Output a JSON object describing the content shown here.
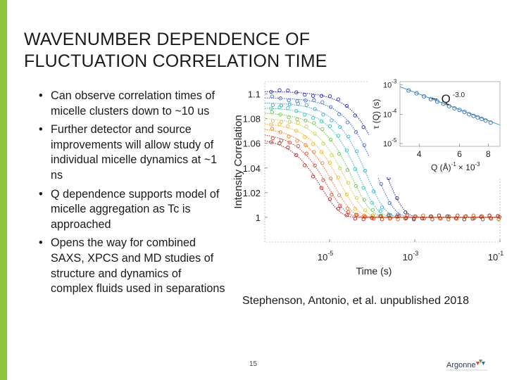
{
  "slide": {
    "title": "WAVENUMBER DEPENDENCE OF\nFLUCTUATION CORRELATION TIME",
    "bullets": [
      "Can observe correlation times of micelle clusters down to ~10 us",
      "Further detector and source improvements will allow study of individual micelle dynamics at ~1 ns",
      "Q dependence supports model of micelle aggregation as Tc is approached",
      "Opens the way for combined SAXS, XPCS and MD studies of structure and dynamics of complex fluids used in separations"
    ],
    "citation": "Stephenson, Antonio, et al. unpublished 2018",
    "page_number": "15",
    "logo_text": "Argonne",
    "accent_color": "#8cc63f"
  },
  "chart_data": [
    {
      "type": "line",
      "xlabel": "Time (s)",
      "ylabel": "Intensity Correlation",
      "xscale": "log",
      "xlim": [
        3e-07,
        0.1
      ],
      "ylim": [
        0.98,
        1.11
      ],
      "x_ticks": [
        {
          "value": 1e-05,
          "base": "10",
          "exp": "-5"
        },
        {
          "value": 0.001,
          "base": "10",
          "exp": "-3"
        },
        {
          "value": 0.1,
          "base": "10",
          "exp": "-1"
        }
      ],
      "y_ticks": [
        1,
        1.02,
        1.04,
        1.06,
        1.08,
        1.1
      ],
      "y_tick_labels": [
        "1",
        "1.02",
        "1.04",
        "1.06",
        "1.08",
        "1.1"
      ],
      "baseline": 1.0,
      "series": [
        {
          "color": "#2b2bb5",
          "contrast": 0.102,
          "tau": 0.0004
        },
        {
          "color": "#3f6fd8",
          "contrast": 0.097,
          "tau": 0.00025
        },
        {
          "color": "#38a8e0",
          "contrast": 0.093,
          "tau": 0.00015
        },
        {
          "color": "#34c3b0",
          "contrast": 0.089,
          "tau": 0.0001
        },
        {
          "color": "#6cc84a",
          "contrast": 0.085,
          "tau": 7e-05
        },
        {
          "color": "#c7d23a",
          "contrast": 0.081,
          "tau": 5e-05
        },
        {
          "color": "#f0b429",
          "contrast": 0.077,
          "tau": 3.5e-05
        },
        {
          "color": "#ec7d24",
          "contrast": 0.073,
          "tau": 2.5e-05
        },
        {
          "color": "#e0432a",
          "contrast": 0.069,
          "tau": 1.8e-05
        },
        {
          "color": "#b52424",
          "contrast": 0.065,
          "tau": 1.3e-05
        }
      ]
    },
    {
      "type": "scatter",
      "annotation_base": "~ Q",
      "annotation_exp": "-3.0",
      "xlabel_main": "Q (Å)",
      "xlabel_sup": "-1",
      "xlabel_suffix": "× 10",
      "xlabel_suffix_exp": "-3",
      "ylabel": "τ (Q) (s)",
      "xscale": "log",
      "yscale": "log",
      "xlim": [
        3.3,
        9.0
      ],
      "ylim": [
        8e-06,
        0.0013
      ],
      "x_ticks": [
        {
          "value": 4,
          "label": "4"
        },
        {
          "value": 6,
          "label": "6"
        },
        {
          "value": 8,
          "label": "8"
        }
      ],
      "y_ticks": [
        {
          "value": 0.001,
          "base": "10",
          "exp": "-3"
        },
        {
          "value": 0.0001,
          "base": "10",
          "exp": "-4"
        },
        {
          "value": 1e-05,
          "base": "10",
          "exp": "-5"
        }
      ],
      "points": [
        {
          "q": 3.6,
          "tau": 0.00065
        },
        {
          "q": 3.9,
          "tau": 0.00052
        },
        {
          "q": 4.2,
          "tau": 0.00041
        },
        {
          "q": 4.5,
          "tau": 0.00033
        },
        {
          "q": 4.8,
          "tau": 0.00027
        },
        {
          "q": 5.1,
          "tau": 0.00023
        },
        {
          "q": 5.4,
          "tau": 0.00019
        },
        {
          "q": 5.7,
          "tau": 0.00016
        },
        {
          "q": 6.0,
          "tau": 0.00014
        },
        {
          "q": 6.3,
          "tau": 0.00012
        },
        {
          "q": 6.6,
          "tau": 0.0001
        },
        {
          "q": 6.9,
          "tau": 8.8e-05
        },
        {
          "q": 7.2,
          "tau": 7.8e-05
        },
        {
          "q": 7.5,
          "tau": 6.9e-05
        },
        {
          "q": 7.8,
          "tau": 6.1e-05
        },
        {
          "q": 8.2,
          "tau": 5.2e-05
        }
      ],
      "fit_slope": -3.0,
      "fit_anchor": {
        "q": 5.0,
        "tau": 0.00025
      },
      "point_color": "#3a6fb0",
      "fit_color": "#3a9fd0"
    }
  ]
}
